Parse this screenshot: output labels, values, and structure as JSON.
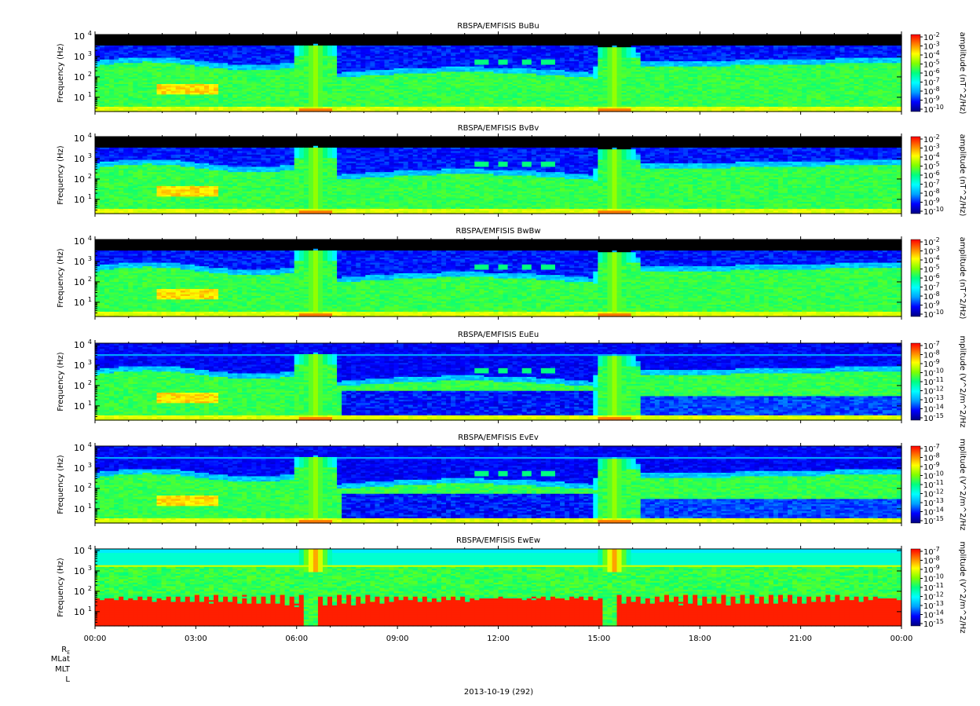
{
  "panels": [
    {
      "title": "RBSPA/EMFISIS  BuBu",
      "ylabel": "Frequency (Hz)",
      "zlabel": "amplitude (nT^2/Hz)",
      "cbar_ticks": [
        "10-2",
        "10-3",
        "10-4",
        "10-5",
        "10-6",
        "10-7",
        "10-8",
        "10-9",
        "10-10"
      ],
      "kind": "B"
    },
    {
      "title": "RBSPA/EMFISIS  BvBv",
      "ylabel": "Frequency (Hz)",
      "zlabel": "amplitude (nT^2/Hz)",
      "cbar_ticks": [
        "10-2",
        "10-3",
        "10-4",
        "10-5",
        "10-6",
        "10-7",
        "10-8",
        "10-9",
        "10-10"
      ],
      "kind": "B"
    },
    {
      "title": "RBSPA/EMFISIS  BwBw",
      "ylabel": "Frequency (Hz)",
      "zlabel": "amplitude (nT^2/Hz)",
      "cbar_ticks": [
        "10-2",
        "10-3",
        "10-4",
        "10-5",
        "10-6",
        "10-7",
        "10-8",
        "10-9",
        "10-10"
      ],
      "kind": "B"
    },
    {
      "title": "RBSPA/EMFISIS  EuEu",
      "ylabel": "Frequency (Hz)",
      "zlabel": "mplitude (V^2/m^2/Hz",
      "cbar_ticks": [
        "10-7",
        "10-8",
        "10-9",
        "10-10",
        "10-11",
        "10-12",
        "10-13",
        "10-14",
        "10-15"
      ],
      "kind": "E"
    },
    {
      "title": "RBSPA/EMFISIS  EvEv",
      "ylabel": "Frequency (Hz)",
      "zlabel": "mplitude (V^2/m^2/Hz",
      "cbar_ticks": [
        "10-7",
        "10-8",
        "10-9",
        "10-10",
        "10-11",
        "10-12",
        "10-13",
        "10-14",
        "10-15"
      ],
      "kind": "E"
    },
    {
      "title": "RBSPA/EMFISIS  EwEw",
      "ylabel": "Frequency (Hz)",
      "zlabel": "mplitude (V^2/m^2/Hz",
      "cbar_ticks": [
        "10-7",
        "10-8",
        "10-9",
        "10-10",
        "10-11",
        "10-12",
        "10-13",
        "10-14",
        "10-15"
      ],
      "kind": "Ew"
    }
  ],
  "y_ticks": [
    "10^4",
    "10^3",
    "10^2",
    "10^1"
  ],
  "x_ticks": [
    "00:00",
    "03:00",
    "06:00",
    "09:00",
    "12:00",
    "15:00",
    "18:00",
    "21:00",
    "00:00"
  ],
  "ephemeris_labels": [
    "RE",
    "MLat",
    "MLT",
    "L"
  ],
  "date_label": "2013-10-19 (292)",
  "chart_data": {
    "type": "heatmap",
    "title": "RBSPA/EMFISIS",
    "xlabel": "2013-10-19 (292)",
    "ylabel": "Frequency (Hz)",
    "y_scale": "log",
    "ylim": [
      2,
      12000
    ],
    "x_range": [
      "00:00",
      "24:00"
    ],
    "x_ticks": [
      "00:00",
      "03:00",
      "06:00",
      "09:00",
      "12:00",
      "15:00",
      "18:00",
      "21:00",
      "00:00"
    ],
    "y_ticks": [
      "10^1",
      "10^2",
      "10^3",
      "10^4"
    ],
    "series": [
      {
        "name": "BuBu",
        "units": "nT^2/Hz",
        "zlim": [
          1e-10,
          0.01
        ]
      },
      {
        "name": "BvBv",
        "units": "nT^2/Hz",
        "zlim": [
          1e-10,
          0.01
        ]
      },
      {
        "name": "BwBw",
        "units": "nT^2/Hz",
        "zlim": [
          1e-10,
          0.01
        ]
      },
      {
        "name": "EuEu",
        "units": "V^2/m^2/Hz",
        "zlim": [
          1e-15,
          1e-07
        ]
      },
      {
        "name": "EvEv",
        "units": "V^2/m^2/Hz",
        "zlim": [
          1e-15,
          1e-07
        ]
      },
      {
        "name": "EwEw",
        "units": "V^2/m^2/Hz",
        "zlim": [
          1e-15,
          1e-07
        ]
      }
    ],
    "features": [
      {
        "label": "perigee_crossing_1",
        "time": "06:30"
      },
      {
        "label": "perigee_crossing_2",
        "time": "15:30"
      }
    ],
    "colormap": [
      "#000080",
      "#0000ff",
      "#00a0ff",
      "#00ffff",
      "#00ff80",
      "#80ff00",
      "#ffff00",
      "#ff8000",
      "#ff0000"
    ]
  }
}
